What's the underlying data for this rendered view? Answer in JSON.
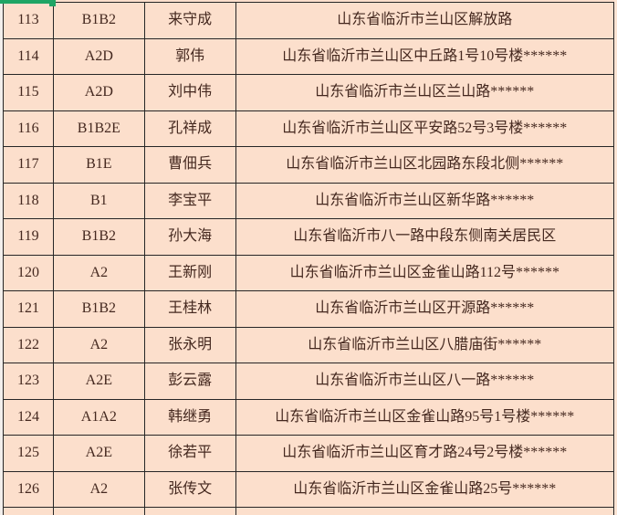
{
  "colors": {
    "cell-bg": "#fcdfcc",
    "text": "#44281f",
    "border": "#262626",
    "selection-green": "#1fa565",
    "left-strip": "#f3efec",
    "right-sliver": "#fce4d4"
  },
  "table": {
    "rows": [
      {
        "no": "113",
        "license": "B1B2",
        "name": "来守成",
        "address": "山东省临沂市兰山区解放路"
      },
      {
        "no": "114",
        "license": "A2D",
        "name": "郭伟",
        "address": "山东省临沂市兰山区中丘路1号10号楼******"
      },
      {
        "no": "115",
        "license": "A2D",
        "name": "刘中伟",
        "address": "山东省临沂市兰山区兰山路******"
      },
      {
        "no": "116",
        "license": "B1B2E",
        "name": "孔祥成",
        "address": "山东省临沂市兰山区平安路52号3号楼******"
      },
      {
        "no": "117",
        "license": "B1E",
        "name": "曹佃兵",
        "address": "山东省临沂市兰山区北园路东段北侧******"
      },
      {
        "no": "118",
        "license": "B1",
        "name": "李宝平",
        "address": "山东省临沂市兰山区新华路******"
      },
      {
        "no": "119",
        "license": "B1B2",
        "name": "孙大海",
        "address": "山东省临沂市八一路中段东侧南关居民区"
      },
      {
        "no": "120",
        "license": "A2",
        "name": "王新刚",
        "address": "山东省临沂市兰山区金雀山路112号******"
      },
      {
        "no": "121",
        "license": "B1B2",
        "name": "王桂林",
        "address": "山东省临沂市兰山区开源路******"
      },
      {
        "no": "122",
        "license": "A2",
        "name": "张永明",
        "address": "山东省临沂市兰山区八腊庙街******"
      },
      {
        "no": "123",
        "license": "A2E",
        "name": "彭云露",
        "address": "山东省临沂市兰山区八一路******"
      },
      {
        "no": "124",
        "license": "A1A2",
        "name": "韩继勇",
        "address": "山东省临沂市兰山区金雀山路95号1号楼******"
      },
      {
        "no": "125",
        "license": "A2E",
        "name": "徐若平",
        "address": "山东省临沂市兰山区育才路24号2号楼******"
      },
      {
        "no": "126",
        "license": "A2",
        "name": "张传文",
        "address": "山东省临沂市兰山区金雀山路25号******"
      }
    ]
  }
}
